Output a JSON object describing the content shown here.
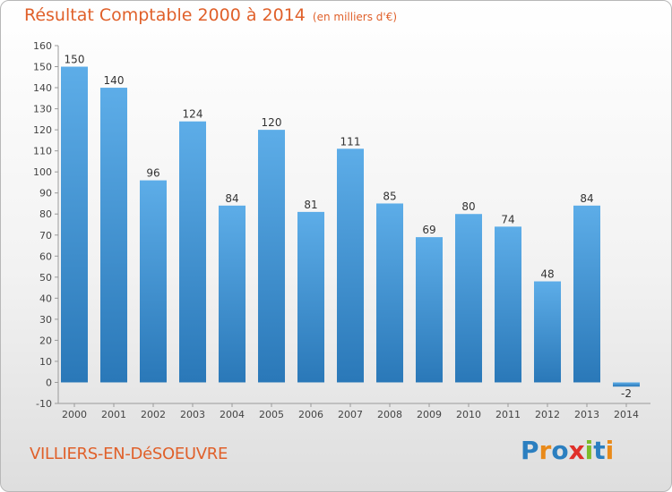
{
  "chart_data": {
    "type": "bar",
    "title": "Résultat Comptable 2000 à 2014",
    "subtitle": "(en milliers d'€)",
    "categories": [
      "2000",
      "2001",
      "2002",
      "2003",
      "2004",
      "2005",
      "2006",
      "2007",
      "2008",
      "2009",
      "2010",
      "2011",
      "2012",
      "2013",
      "2014"
    ],
    "values": [
      150,
      140,
      96,
      124,
      84,
      120,
      81,
      111,
      85,
      69,
      80,
      74,
      48,
      84,
      -2
    ],
    "ylim": [
      -10,
      160
    ],
    "yticks": [
      -10,
      0,
      10,
      20,
      30,
      40,
      50,
      60,
      70,
      80,
      90,
      100,
      110,
      120,
      130,
      140,
      150,
      160
    ],
    "grid": false,
    "bar_color_top": "#5dade8",
    "bar_color_bottom": "#2a78b8"
  },
  "footer": {
    "city": "VILLIERS-EN-DéSOEUVRE",
    "brand_letters": [
      {
        "ch": "P",
        "color": "#2b7fc0"
      },
      {
        "ch": "r",
        "color": "#e98a1a"
      },
      {
        "ch": "o",
        "color": "#2b7fc0"
      },
      {
        "ch": "x",
        "color": "#e0302a"
      },
      {
        "ch": "i",
        "color": "#7dbb2a"
      },
      {
        "ch": "t",
        "color": "#2b7fc0"
      },
      {
        "ch": "i",
        "color": "#e98a1a"
      }
    ]
  }
}
